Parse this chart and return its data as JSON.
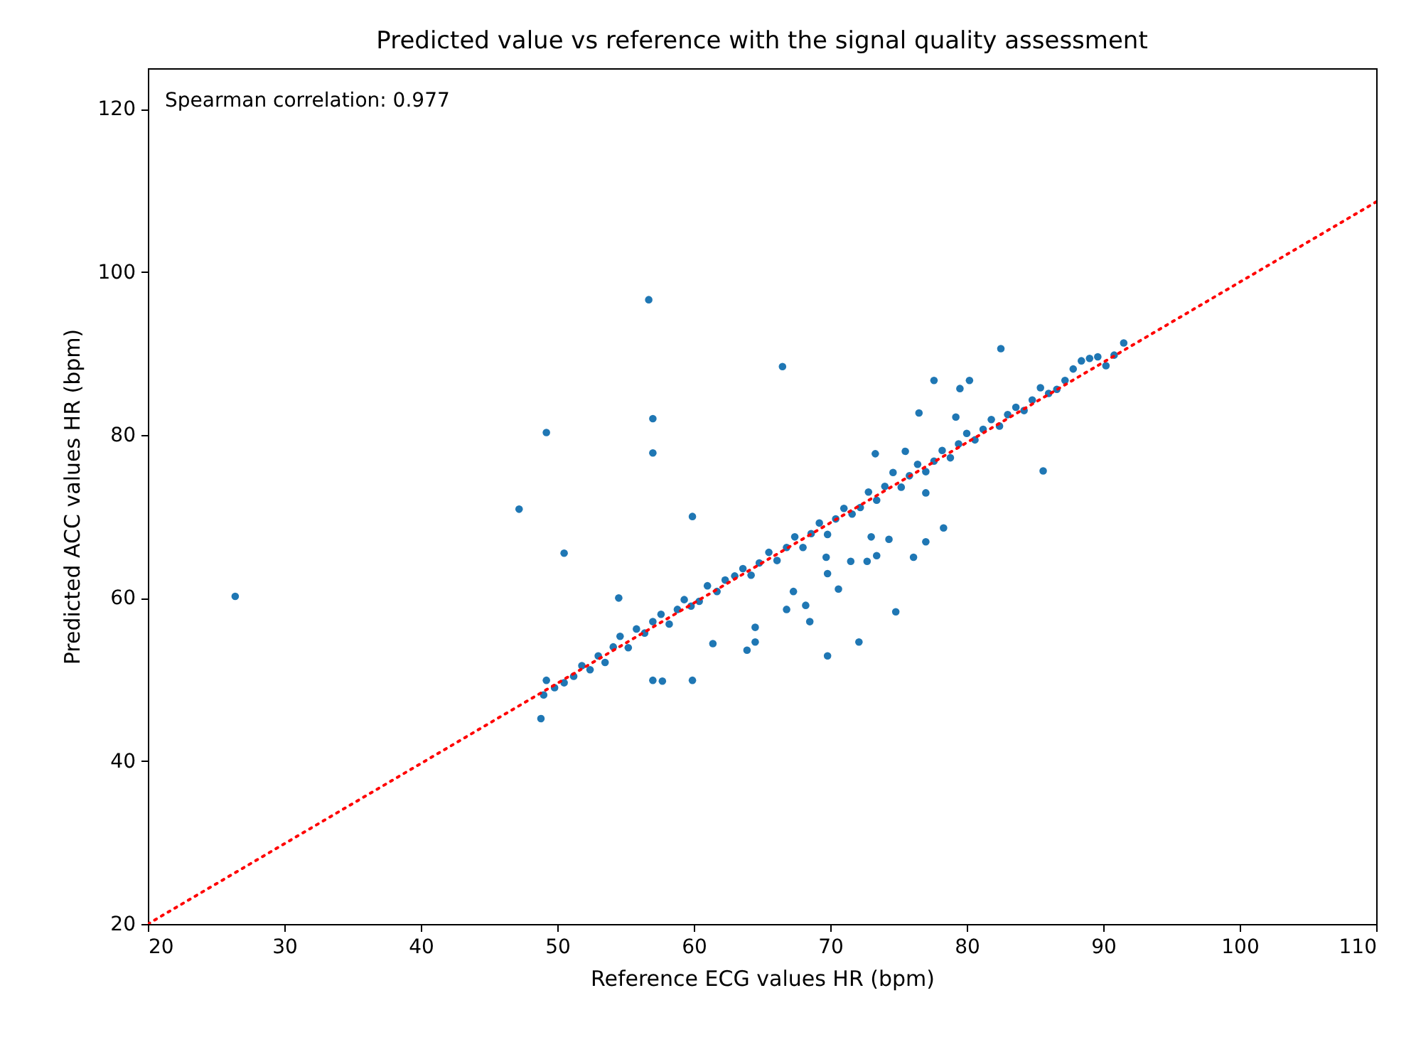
{
  "chart_data": {
    "type": "scatter",
    "title": "Predicted value vs reference with the signal quality assessment",
    "xlabel": "Reference ECG values HR (bpm)",
    "ylabel": "Predicted ACC values HR (bpm)",
    "annotations": [
      "Spearman correlation: 0.977"
    ],
    "xlim": [
      20,
      110
    ],
    "ylim": [
      20,
      125
    ],
    "xticks": [
      20,
      30,
      40,
      50,
      60,
      70,
      80,
      90,
      100,
      110
    ],
    "yticks": [
      20,
      40,
      60,
      80,
      100,
      120
    ],
    "grid": false,
    "series": [
      {
        "marker": "circle",
        "color": "#1f77b4",
        "x": [
          26.4,
          56.7,
          49.2,
          57.0,
          57.0,
          47.2,
          59.9,
          50.5,
          54.5,
          57.0,
          57.7,
          59.9,
          48.8,
          61.4,
          63.9,
          64.5,
          64.5,
          82.5,
          66.5,
          77.6,
          80.2,
          79.5,
          76.5,
          79.2,
          85.6,
          78.3,
          77.0,
          76.1,
          74.8,
          72.1,
          69.8,
          68.5,
          68.2,
          66.8,
          67.3,
          69.8,
          70.6,
          69.7,
          71.5,
          73.0,
          74.3,
          72.7,
          73.4,
          77.0,
          73.3,
          75.5,
          49.0,
          49.2,
          49.8,
          50.5,
          51.2,
          51.8,
          52.4,
          53.0,
          53.5,
          54.1,
          54.6,
          55.2,
          55.8,
          56.4,
          57.0,
          57.6,
          58.2,
          58.8,
          59.3,
          59.8,
          60.4,
          61.0,
          61.7,
          62.3,
          63.0,
          63.6,
          64.2,
          64.8,
          65.5,
          66.1,
          66.8,
          67.4,
          68.0,
          68.6,
          69.2,
          69.8,
          70.4,
          71.0,
          71.6,
          72.2,
          72.8,
          73.4,
          74.0,
          74.6,
          75.2,
          75.8,
          76.4,
          77.0,
          77.6,
          78.2,
          78.8,
          79.4,
          80.0,
          80.6,
          81.2,
          81.8,
          82.4,
          83.0,
          83.6,
          84.2,
          84.8,
          85.4,
          86.0,
          86.6,
          87.2,
          87.8,
          88.4,
          89.0,
          89.6,
          90.2,
          90.8,
          91.5
        ],
        "values": [
          60.2,
          96.6,
          80.3,
          82.0,
          77.8,
          70.9,
          70.0,
          65.5,
          60.0,
          49.9,
          49.8,
          49.9,
          45.2,
          54.4,
          53.6,
          54.6,
          56.4,
          90.6,
          88.4,
          86.7,
          86.7,
          85.7,
          82.7,
          82.2,
          75.6,
          68.6,
          66.9,
          65.0,
          58.3,
          54.6,
          52.9,
          57.1,
          59.1,
          58.6,
          60.8,
          63.0,
          61.1,
          65.0,
          64.5,
          67.5,
          67.2,
          64.5,
          65.2,
          72.9,
          77.7,
          78.0,
          48.1,
          49.9,
          49.0,
          49.6,
          50.4,
          51.7,
          51.2,
          52.9,
          52.1,
          54.0,
          55.3,
          53.9,
          56.2,
          55.7,
          57.1,
          58.0,
          56.8,
          58.6,
          59.8,
          59.0,
          59.6,
          61.5,
          60.8,
          62.2,
          62.7,
          63.6,
          62.8,
          64.3,
          65.6,
          64.6,
          66.2,
          67.5,
          66.2,
          67.9,
          69.2,
          67.8,
          69.7,
          71.0,
          70.3,
          71.1,
          73.0,
          72.0,
          73.7,
          75.4,
          73.6,
          75.0,
          76.4,
          75.5,
          76.8,
          78.1,
          77.2,
          78.9,
          80.2,
          79.4,
          80.7,
          81.9,
          81.1,
          82.5,
          83.4,
          83.0,
          84.3,
          85.8,
          85.1,
          85.6,
          86.7,
          88.1,
          89.1,
          89.4,
          89.6,
          88.5,
          89.8,
          91.3
        ]
      },
      {
        "type": "line",
        "marker": "none",
        "color": "#ff0000",
        "line_style": "dotted",
        "x": [
          20,
          110
        ],
        "values": [
          20,
          108.6
        ]
      }
    ]
  }
}
